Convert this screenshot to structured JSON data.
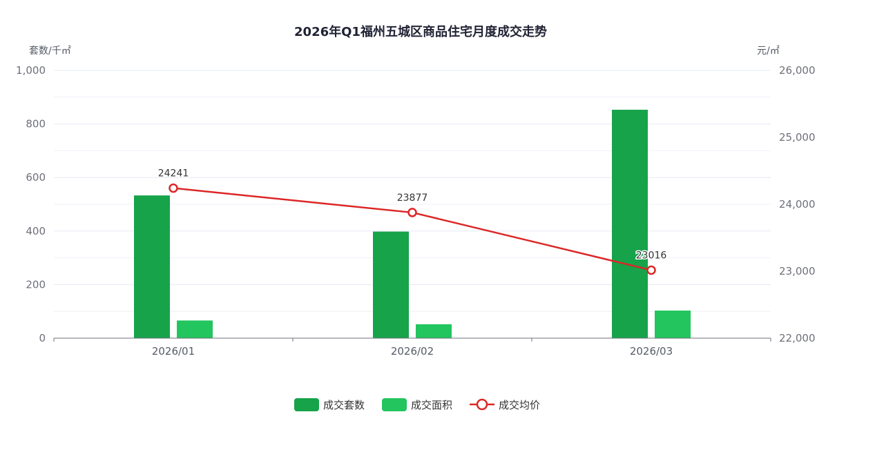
{
  "chart_data": {
    "type": "bar",
    "title": "2026年Q1福州五城区商品住宅月度成交走势",
    "y_left_label": "套数/千㎡",
    "y_right_label": "元/㎡",
    "categories": [
      "2026/01",
      "2026/02",
      "2026/03"
    ],
    "y_left_lim": [
      0,
      1000
    ],
    "y_right_lim": [
      22000,
      26000
    ],
    "y_left_ticks": [
      "0",
      "200",
      "400",
      "600",
      "800",
      "1,000"
    ],
    "y_right_ticks": [
      "22,000",
      "23,000",
      "24,000",
      "25,000",
      "26,000"
    ],
    "grid": true,
    "legend_position": "bottom",
    "series": [
      {
        "name": "成交套数",
        "type": "bar",
        "axis": "left",
        "color": "#16a34a",
        "values": [
          533,
          398,
          853
        ]
      },
      {
        "name": "成交面积",
        "type": "bar",
        "axis": "left",
        "color": "#22c55e",
        "values": [
          66,
          52,
          103
        ]
      },
      {
        "name": "成交均价",
        "type": "line",
        "axis": "right",
        "color": "#dc2626",
        "values": [
          24241,
          23877,
          23016
        ],
        "labels": [
          "24241",
          "23877",
          "23016"
        ]
      }
    ]
  }
}
